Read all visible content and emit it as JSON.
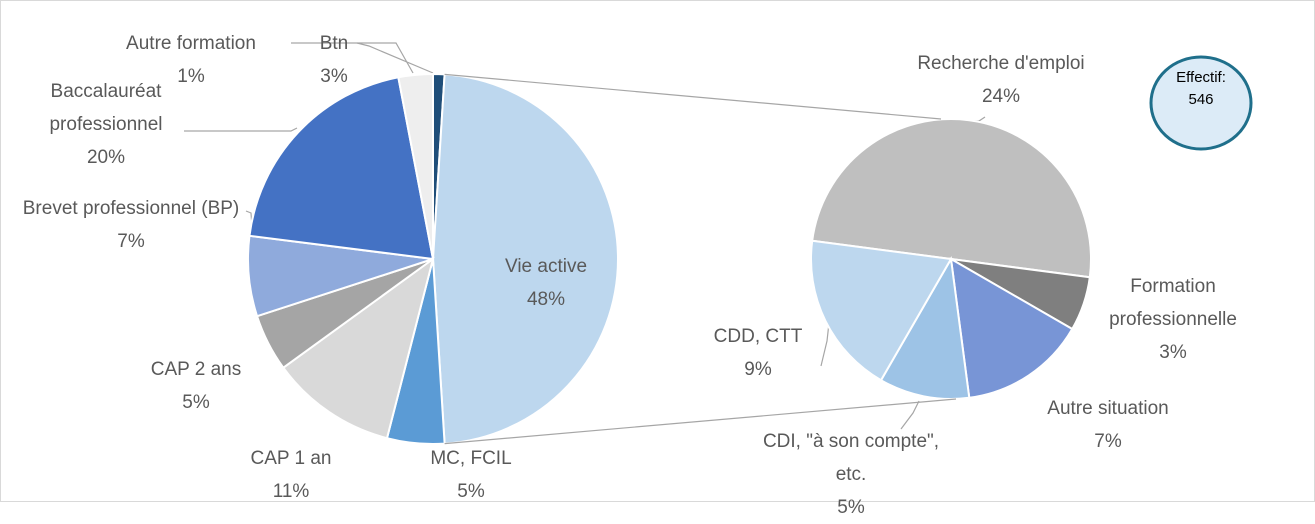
{
  "chart_data": {
    "type": "pie_of_pie",
    "pies": [
      {
        "categories": [
          "Autre formation",
          "Vie active",
          "MC, FCIL",
          "CAP 1 an",
          "CAP 2 ans",
          "Brevet professionnel (BP)",
          "Baccalauréat professionnel",
          "Btn"
        ],
        "values": [
          1,
          48,
          5,
          11,
          5,
          7,
          20,
          3
        ],
        "value_labels": [
          "1%",
          "48%",
          "5%",
          "11%",
          "5%",
          "7%",
          "20%",
          "3%"
        ],
        "colors": [
          "#1f4e79",
          "#bdd7ee",
          "#5b9bd5",
          "#d9d9d9",
          "#a5a5a5",
          "#8faadc",
          "#4472c4",
          "#eeeeee"
        ]
      },
      {
        "categories": [
          "Recherche d'emploi",
          "Formation professionnelle",
          "Autre situation",
          "CDI, \"à son compte\", etc.",
          "CDD, CTT"
        ],
        "values": [
          24,
          3,
          7,
          5,
          9
        ],
        "value_labels": [
          "24%",
          "3%",
          "7%",
          "5%",
          "9%"
        ],
        "colors": [
          "#bfbfbf",
          "#7f7f7f",
          "#7895d6",
          "#9dc3e6",
          "#bdd7ee"
        ]
      }
    ],
    "annotation": {
      "title": "Effectif:",
      "value": 546
    }
  }
}
